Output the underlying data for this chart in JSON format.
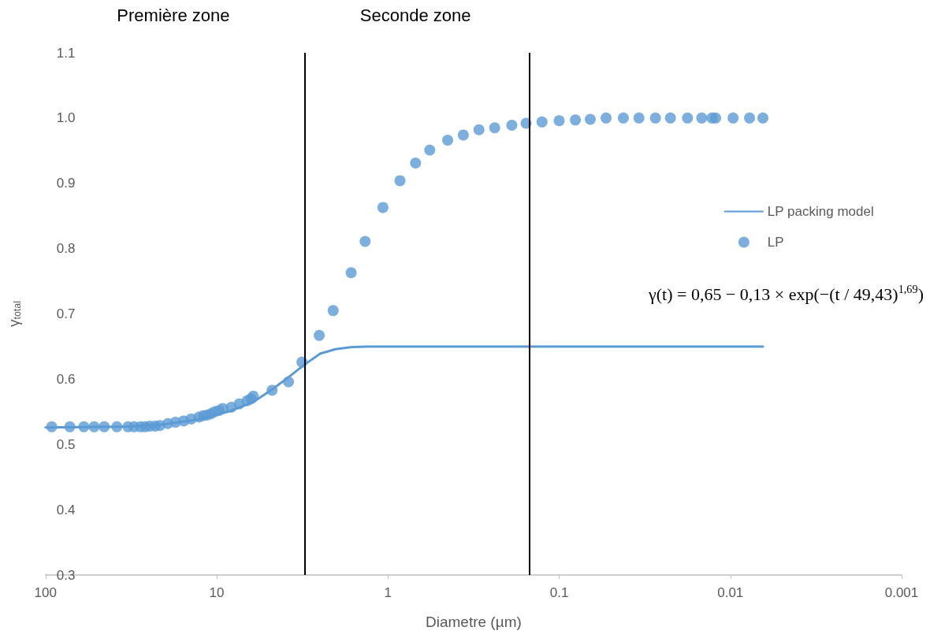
{
  "chart_data": {
    "type": "scatter",
    "xlabel": "Diametre (µm)",
    "ylabel": "γ$_{total}$",
    "annotations": [
      "Première zone",
      "Seconde zone",
      "γ(t) = 0,65 − 0,13 × exp(−(t / 49,43)$^{1,69}$)"
    ],
    "series": [
      {
        "name": "LP packing model",
        "type": "line",
        "color": "#5b9bd5",
        "marker": "none",
        "x": [
          100,
          36.7,
          21.7,
          12.8,
          8.39,
          6.12,
          4.7,
          3.81,
          3.08,
          2.49,
          2.02,
          1.64,
          1.33,
          0.32,
          0.00646
        ],
        "values": [
          0.526,
          0.527,
          0.53,
          0.538,
          0.551,
          0.565,
          0.585,
          0.603,
          0.622,
          0.639,
          0.646,
          0.649,
          0.65,
          0.65,
          0.65
        ]
      },
      {
        "name": "LP",
        "color": "#5b9bd5",
        "marker": "circle",
        "x": [
          92,
          72.1,
          59.7,
          52,
          45.4,
          38.3,
          33,
          30.4,
          27.9,
          26.2,
          24.6,
          22.9,
          21.5,
          19.3,
          17.4,
          15.6,
          14.1,
          12.7,
          12,
          11.4,
          10.8,
          10.3,
          9.73,
          9.23,
          8.22,
          7.4,
          6.65,
          6.31,
          6.12,
          4.75,
          3.81,
          3.18,
          2.52,
          2.09,
          1.64,
          1.36,
          1.07,
          0.851,
          0.69,
          0.57,
          0.448,
          0.363,
          0.294,
          0.238,
          0.189,
          0.156,
          0.126,
          0.1,
          0.0804,
          0.0658,
          0.0532,
          0.0422,
          0.0342,
          0.0274,
          0.0224,
          0.0178,
          0.0147,
          0.0128,
          0.0122,
          0.00964,
          0.00773,
          0.00646
        ],
        "values": [
          0.527,
          0.527,
          0.527,
          0.527,
          0.527,
          0.527,
          0.527,
          0.527,
          0.527,
          0.527,
          0.528,
          0.528,
          0.529,
          0.532,
          0.534,
          0.536,
          0.539,
          0.542,
          0.544,
          0.545,
          0.547,
          0.55,
          0.552,
          0.555,
          0.557,
          0.562,
          0.567,
          0.57,
          0.574,
          0.583,
          0.596,
          0.626,
          0.667,
          0.705,
          0.763,
          0.811,
          0.863,
          0.904,
          0.931,
          0.951,
          0.966,
          0.974,
          0.982,
          0.985,
          0.989,
          0.992,
          0.994,
          0.996,
          0.997,
          0.998,
          1.0,
          1.0,
          1.0,
          1.0,
          1.0,
          1.0,
          1.0,
          1.0,
          1.0,
          1.0,
          1.0,
          1.0
        ]
      }
    ],
    "log": "x",
    "xlim": [
      100,
      0.001
    ],
    "xticks": [
      100,
      10,
      1,
      0.1,
      0.01,
      0.001
    ],
    "ylim": [
      0.3,
      1.1
    ],
    "yticks": [
      0.3,
      0.4,
      0.5,
      0.6,
      0.7,
      0.8,
      0.9,
      {
        "value": 1,
        "label": "1.0"
      },
      1.1
    ],
    "ref_lines": [
      {
        "axis": "x",
        "value": 3.06,
        "color": "#000000"
      },
      {
        "axis": "x",
        "value": 0.151,
        "color": "#000000"
      }
    ],
    "grid": false,
    "legend": "right"
  }
}
